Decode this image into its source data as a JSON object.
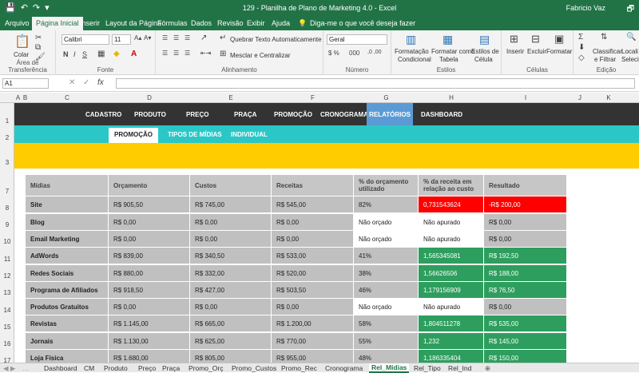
{
  "title": "129 - Planilha de Plano de Marketing 4.0  -  Excel",
  "user": "Fabricio Vaz",
  "menu": [
    "Arquivo",
    "Página Inicial",
    "Inserir",
    "Layout da Página",
    "Fórmulas",
    "Dados",
    "Revisão",
    "Exibir",
    "Ajuda"
  ],
  "tellme": "Diga-me o que você deseja fazer",
  "ribbon": {
    "paste": "Colar",
    "clipboard": "Área de Transferência",
    "font_name": "Calibri",
    "font_size": "11",
    "font_group": "Fonte",
    "wrap": "Quebrar Texto Automaticamente",
    "merge": "Mesclar e Centralizar",
    "align_group": "Alinhamento",
    "number_format": "Geral",
    "number_group": "Número",
    "cond_format": "Formatação",
    "cond_format2": "Condicional",
    "format_table": "Formatar como",
    "format_table2": "Tabela",
    "cell_styles": "Estilos de",
    "cell_styles2": "Célula",
    "styles_group": "Estilos",
    "insert": "Inserir",
    "delete": "Excluir",
    "format": "Formatar",
    "cells_group": "Células",
    "sort": "Classificar",
    "sort2": "e Filtrar",
    "find": "Locali",
    "find2": "Seleci",
    "edit_group": "Edição"
  },
  "namebox": "A1",
  "columns": [
    "A",
    "B",
    "C",
    "D",
    "E",
    "F",
    "G",
    "H",
    "I",
    "J",
    "K"
  ],
  "rows": [
    "1",
    "2",
    "3",
    "7",
    "8",
    "9",
    "10",
    "11",
    "12",
    "13",
    "14",
    "15",
    "16",
    "17"
  ],
  "nav": [
    "CADASTRO",
    "PRODUTO",
    "PREÇO",
    "PRAÇA",
    "PROMOÇÃO",
    "CRONOGRAMA",
    "RELATÓRIOS",
    "DASHBOARD"
  ],
  "subnav": [
    "PROMOÇÃO",
    "TIPOS DE MÍDIAS",
    "INDIVIDUAL"
  ],
  "table": {
    "headers": [
      "Mídias",
      "Orçamento",
      "Custos",
      "Receitas",
      "% do orçamento utilizado",
      "% da receita em relação ao custo",
      "Resultado"
    ],
    "rows": [
      [
        "Site",
        "R$ 905,50",
        "R$ 745,00",
        "R$ 545,00",
        "82%",
        "0,731543624",
        "-R$ 200,00"
      ],
      [
        "Blog",
        "R$ 0,00",
        "R$ 0,00",
        "R$ 0,00",
        "Não orçado",
        "Não apurado",
        "R$ 0,00"
      ],
      [
        "Email Marketing",
        "R$ 0,00",
        "R$ 0,00",
        "R$ 0,00",
        "Não orçado",
        "Não apurado",
        "R$ 0,00"
      ],
      [
        "AdWords",
        "R$ 839,00",
        "R$ 340,50",
        "R$ 533,00",
        "41%",
        "1,565345081",
        "R$ 192,50"
      ],
      [
        "Redes Sociais",
        "R$ 880,00",
        "R$ 332,00",
        "R$ 520,00",
        "38%",
        "1,56626506",
        "R$ 188,00"
      ],
      [
        "Programa de Afiliados",
        "R$ 918,50",
        "R$ 427,00",
        "R$ 503,50",
        "46%",
        "1,179156909",
        "R$ 76,50"
      ],
      [
        "Produtos Gratuitos",
        "R$ 0,00",
        "R$ 0,00",
        "R$ 0,00",
        "Não orçado",
        "Não apurado",
        "R$ 0,00"
      ],
      [
        "Revistas",
        "R$ 1.145,00",
        "R$ 665,00",
        "R$ 1.200,00",
        "58%",
        "1,804511278",
        "R$ 535,00"
      ],
      [
        "Jornais",
        "R$ 1.130,00",
        "R$ 625,00",
        "R$ 770,00",
        "55%",
        "1,232",
        "R$ 145,00"
      ],
      [
        "Loja Física",
        "R$ 1.680,00",
        "R$ 805,00",
        "R$ 955,00",
        "48%",
        "1,186335404",
        "R$ 150,00"
      ]
    ]
  },
  "colors": {
    "excel_green": "#217346",
    "red": "#ff0000",
    "green": "#2e9e5e",
    "gray": "#c0c0c0",
    "nav_dark": "#333333",
    "nav_active": "#5b9bd5",
    "teal": "#2bc7c7",
    "yellow": "#ffcc00"
  },
  "sheets": [
    "Dashboard",
    "CM",
    "Produto",
    "Preço",
    "Praça",
    "Promo_Orç",
    "Promo_Custos",
    "Promo_Rec",
    "Cronograma",
    "Rel_Mídias",
    "Rel_Tipo",
    "Rel_Ind"
  ]
}
